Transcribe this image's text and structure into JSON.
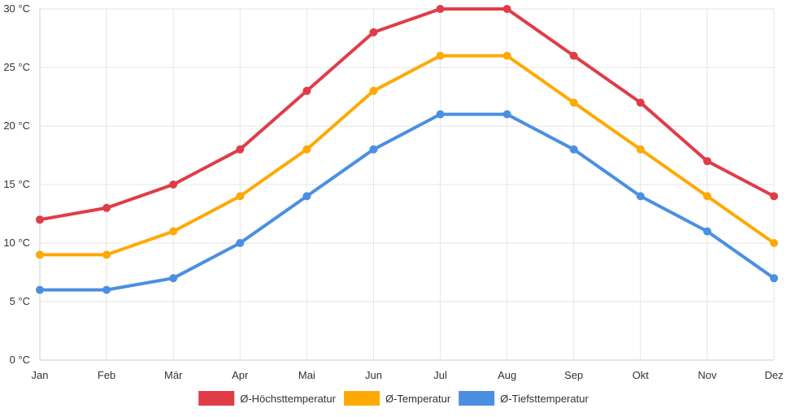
{
  "chart_data": {
    "type": "line",
    "title": "",
    "xlabel": "",
    "ylabel": "",
    "categories": [
      "Jan",
      "Feb",
      "Mär",
      "Apr",
      "Mai",
      "Jun",
      "Jul",
      "Aug",
      "Sep",
      "Okt",
      "Nov",
      "Dez"
    ],
    "ylim": [
      0,
      30
    ],
    "yticks": [
      0,
      5,
      10,
      15,
      20,
      25,
      30
    ],
    "y_unit": "°C",
    "grid": true,
    "legend_position": "bottom-center",
    "series": [
      {
        "name": "Ø-Höchsttemperatur",
        "color": "#e03c48",
        "values": [
          12,
          13,
          15,
          18,
          23,
          28,
          30,
          30,
          26,
          22,
          17,
          14
        ]
      },
      {
        "name": "Ø-Temperatur",
        "color": "#fea904",
        "values": [
          9,
          9,
          11,
          14,
          18,
          23,
          26,
          26,
          22,
          18,
          14,
          10
        ]
      },
      {
        "name": "Ø-Tiefsttemperatur",
        "color": "#4a8fe2",
        "values": [
          6,
          6,
          7,
          10,
          14,
          18,
          21,
          21,
          18,
          14,
          11,
          7
        ]
      }
    ]
  }
}
